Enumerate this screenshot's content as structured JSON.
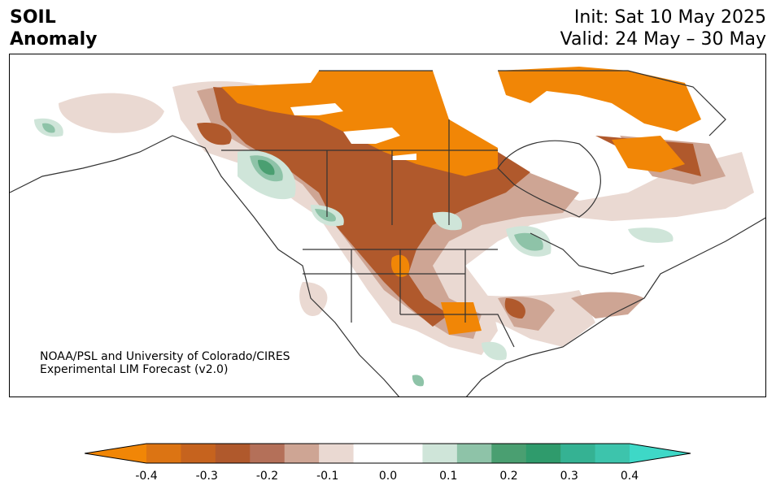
{
  "title": {
    "left_line1": "SOIL",
    "left_line2": "Anomaly",
    "right_line1": "Init: Sat 10 May 2025",
    "right_line2": "Valid: 24 May – 30 May"
  },
  "credit": {
    "line1": "NOAA/PSL and University of Colorado/CIRES",
    "line2": "Experimental LIM Forecast (v2.0)"
  },
  "colorbar": {
    "colors": [
      "#f18606",
      "#dc7413",
      "#c6631e",
      "#b0592c",
      "#b47059",
      "#cea594",
      "#ead9d2",
      "#ffffff",
      "#ffffff",
      "#cfe5d9",
      "#8ec3a8",
      "#4a9f71",
      "#2f9b6c",
      "#35b293",
      "#3dc4ac",
      "#3ed8c7"
    ],
    "ticks": [
      "-0.4",
      "-0.3",
      "-0.2",
      "-0.1",
      "0.0",
      "0.1",
      "0.2",
      "0.3",
      "0.4"
    ]
  }
}
